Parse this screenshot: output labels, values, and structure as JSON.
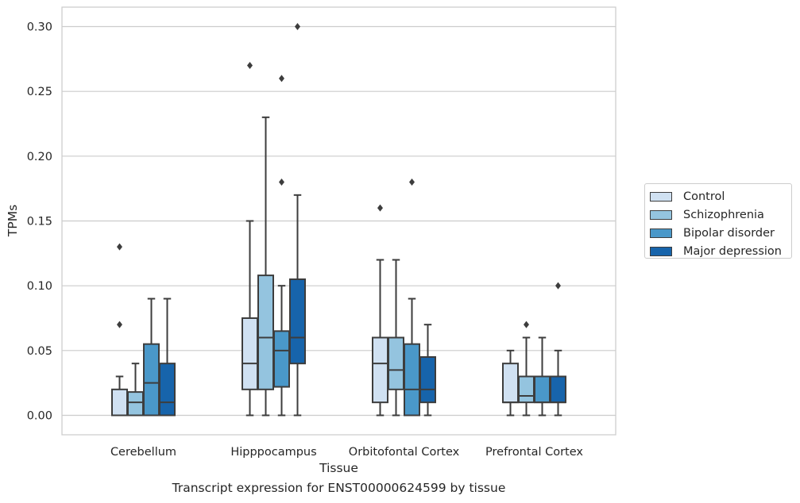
{
  "chart_data": {
    "type": "boxplot",
    "xlabel": "Tissue",
    "ylabel": "TPMs",
    "caption": "Transcript expression for ENST00000624599 by tissue",
    "ylim": [
      -0.015,
      0.315
    ],
    "yticks": [
      0.0,
      0.05,
      0.1,
      0.15,
      0.2,
      0.25,
      0.3
    ],
    "ytick_labels": [
      "0.00",
      "0.05",
      "0.10",
      "0.15",
      "0.20",
      "0.25",
      "0.30"
    ],
    "grid": "horizontal",
    "legend_position": "right",
    "categories": [
      "Cerebellum",
      "Hipppocampus",
      "Orbitofontal Cortex",
      "Prefrontal Cortex"
    ],
    "series": [
      {
        "name": "Control",
        "color": "#d0e1f2",
        "boxes": [
          {
            "whislo": 0.0,
            "q1": 0.0,
            "med": 0.0,
            "q3": 0.02,
            "whishi": 0.03,
            "fliers": [
              0.07,
              0.13
            ]
          },
          {
            "whislo": 0.0,
            "q1": 0.02,
            "med": 0.04,
            "q3": 0.075,
            "whishi": 0.15,
            "fliers": [
              0.27
            ]
          },
          {
            "whislo": 0.0,
            "q1": 0.01,
            "med": 0.04,
            "q3": 0.06,
            "whishi": 0.12,
            "fliers": [
              0.16
            ]
          },
          {
            "whislo": 0.0,
            "q1": 0.01,
            "med": 0.01,
            "q3": 0.04,
            "whishi": 0.05,
            "fliers": []
          }
        ]
      },
      {
        "name": "Schizophrenia",
        "color": "#94c4df",
        "boxes": [
          {
            "whislo": 0.0,
            "q1": 0.0,
            "med": 0.01,
            "q3": 0.018,
            "whishi": 0.04,
            "fliers": []
          },
          {
            "whislo": 0.0,
            "q1": 0.02,
            "med": 0.06,
            "q3": 0.108,
            "whishi": 0.23,
            "fliers": []
          },
          {
            "whislo": 0.0,
            "q1": 0.02,
            "med": 0.035,
            "q3": 0.06,
            "whishi": 0.12,
            "fliers": []
          },
          {
            "whislo": 0.0,
            "q1": 0.01,
            "med": 0.015,
            "q3": 0.03,
            "whishi": 0.06,
            "fliers": [
              0.07
            ]
          }
        ]
      },
      {
        "name": "Bipolar disorder",
        "color": "#4a98c9",
        "boxes": [
          {
            "whislo": 0.0,
            "q1": 0.0,
            "med": 0.025,
            "q3": 0.055,
            "whishi": 0.09,
            "fliers": []
          },
          {
            "whislo": 0.0,
            "q1": 0.022,
            "med": 0.05,
            "q3": 0.065,
            "whishi": 0.1,
            "fliers": [
              0.18,
              0.26
            ]
          },
          {
            "whislo": 0.0,
            "q1": 0.0,
            "med": 0.02,
            "q3": 0.055,
            "whishi": 0.09,
            "fliers": [
              0.18
            ]
          },
          {
            "whislo": 0.0,
            "q1": 0.01,
            "med": 0.01,
            "q3": 0.03,
            "whishi": 0.06,
            "fliers": []
          }
        ]
      },
      {
        "name": "Major depression",
        "color": "#1764ab",
        "boxes": [
          {
            "whislo": 0.0,
            "q1": 0.0,
            "med": 0.01,
            "q3": 0.04,
            "whishi": 0.09,
            "fliers": []
          },
          {
            "whislo": 0.0,
            "q1": 0.04,
            "med": 0.06,
            "q3": 0.105,
            "whishi": 0.17,
            "fliers": [
              0.3
            ]
          },
          {
            "whislo": 0.0,
            "q1": 0.01,
            "med": 0.02,
            "q3": 0.045,
            "whishi": 0.07,
            "fliers": []
          },
          {
            "whislo": 0.0,
            "q1": 0.01,
            "med": 0.01,
            "q3": 0.03,
            "whishi": 0.05,
            "fliers": [
              0.1
            ]
          }
        ]
      }
    ]
  }
}
